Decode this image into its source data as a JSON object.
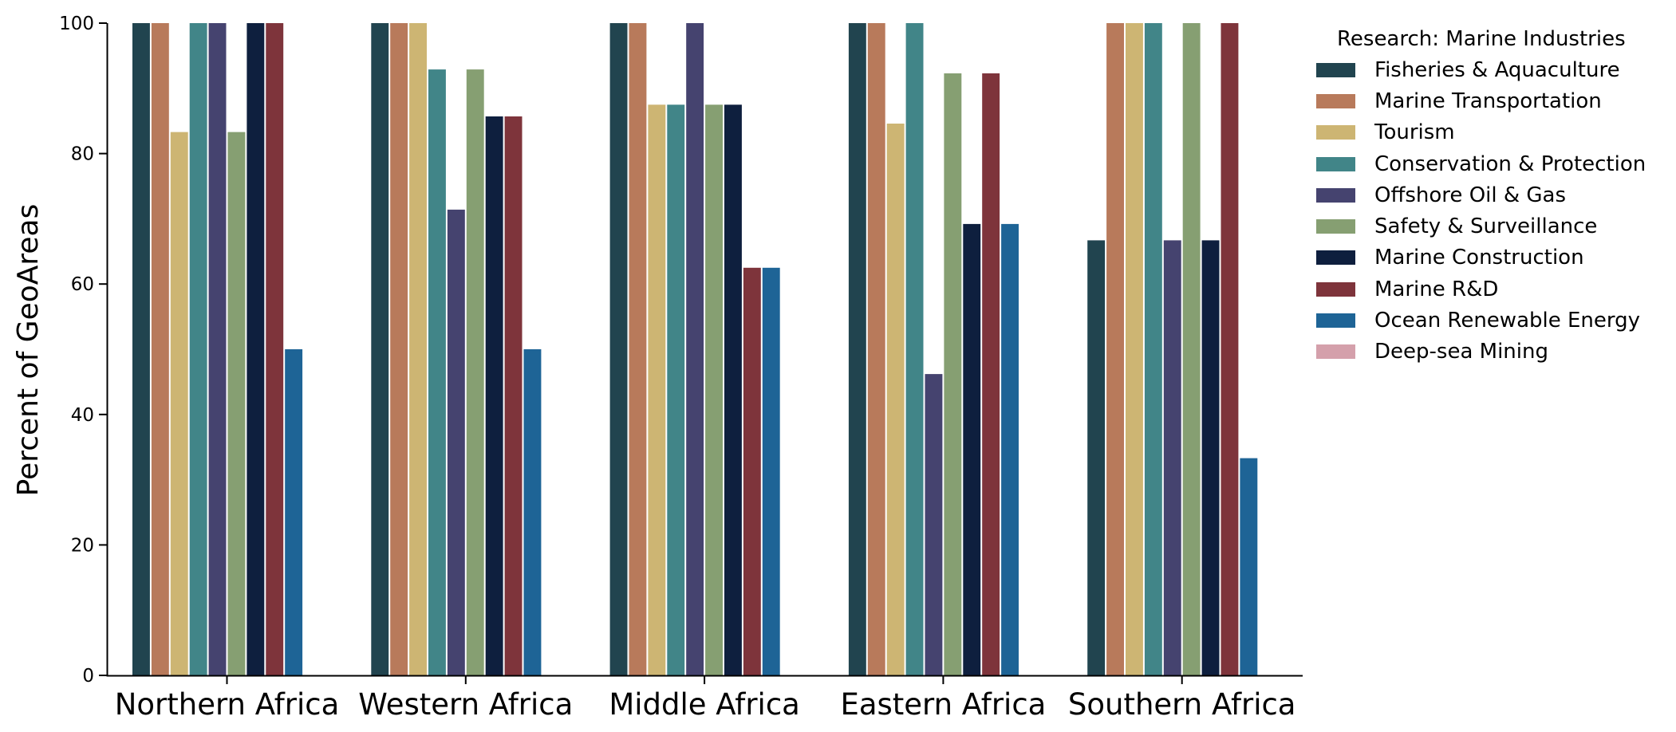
{
  "chart_data": {
    "type": "bar",
    "ylabel": "Percent of GeoAreas",
    "xlabel": "",
    "ylim": [
      0,
      100
    ],
    "yticks": [
      0,
      20,
      40,
      60,
      80,
      100
    ],
    "categories": [
      "Northern Africa",
      "Western Africa",
      "Middle Africa",
      "Eastern Africa",
      "Southern Africa"
    ],
    "legend_title": "Research: Marine Industries",
    "legend_position": "right",
    "grid": false,
    "series": [
      {
        "name": "Fisheries & Aquaculture",
        "color": "#21444f",
        "values": [
          100,
          100,
          100,
          100,
          66.7
        ]
      },
      {
        "name": "Marine Transportation",
        "color": "#b87a5b",
        "values": [
          100,
          100,
          100,
          100,
          100
        ]
      },
      {
        "name": "Tourism",
        "color": "#cdb573",
        "values": [
          83.3,
          100,
          87.5,
          84.6,
          100
        ]
      },
      {
        "name": "Conservation & Protection",
        "color": "#418588",
        "values": [
          100,
          92.9,
          87.5,
          100,
          100
        ]
      },
      {
        "name": "Offshore Oil & Gas",
        "color": "#45436f",
        "values": [
          100,
          71.4,
          100,
          46.2,
          66.7
        ]
      },
      {
        "name": "Safety & Surveillance",
        "color": "#869f72",
        "values": [
          83.3,
          92.9,
          87.5,
          92.3,
          100
        ]
      },
      {
        "name": "Marine Construction",
        "color": "#0e1f3e",
        "values": [
          100,
          85.7,
          87.5,
          69.2,
          66.7
        ]
      },
      {
        "name": "Marine R&D",
        "color": "#7e343b",
        "values": [
          100,
          85.7,
          62.5,
          92.3,
          100
        ]
      },
      {
        "name": "Ocean Renewable Energy",
        "color": "#1e6496",
        "values": [
          50,
          50,
          62.5,
          69.2,
          33.3
        ]
      },
      {
        "name": "Deep-sea Mining",
        "color": "#d4a0ab",
        "values": [
          0,
          0,
          0,
          0,
          0
        ]
      }
    ]
  }
}
